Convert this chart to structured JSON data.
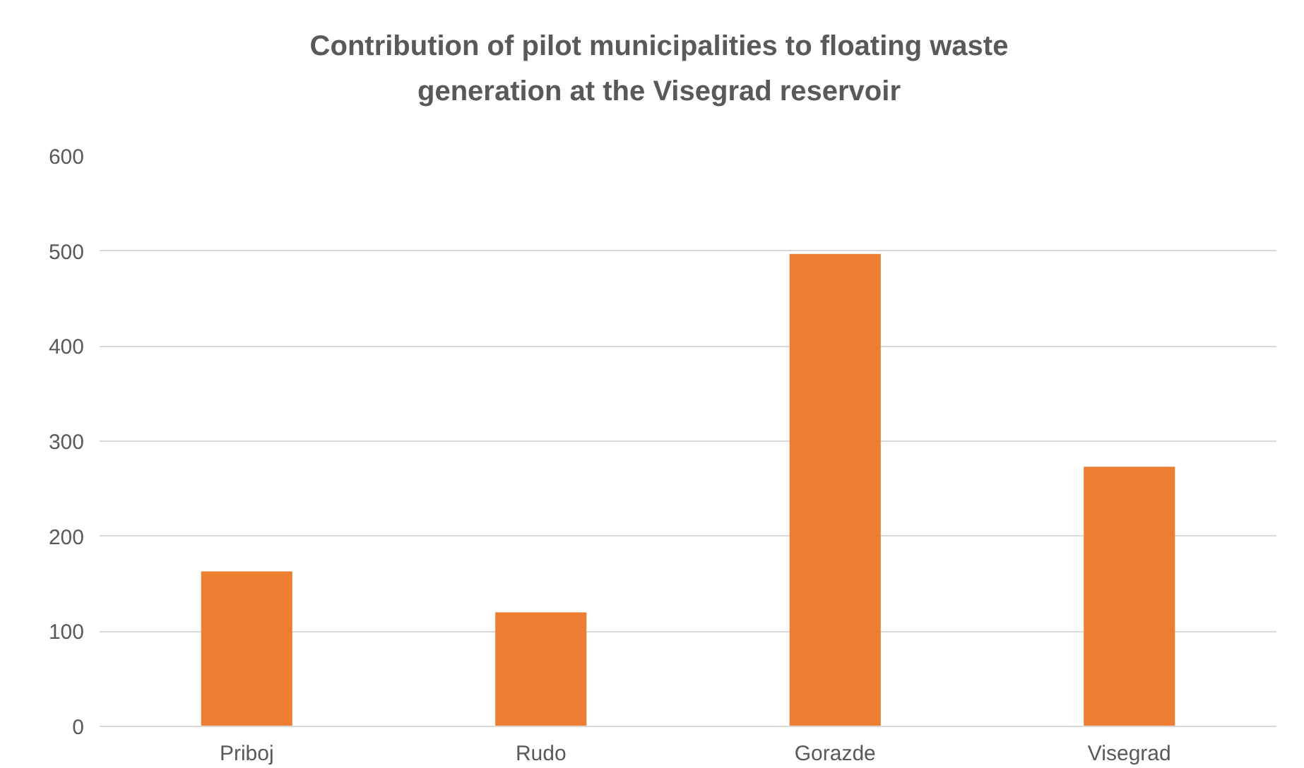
{
  "chart_data": {
    "type": "bar",
    "title": "Contribution of pilot municipalities to floating waste\ngeneration at the Visegrad reservoir",
    "categories": [
      "Priboj",
      "Rudo",
      "Gorazde",
      "Visegrad"
    ],
    "values": [
      163,
      120,
      497,
      273
    ],
    "color": "#ed7d31",
    "ylim": [
      0,
      600
    ],
    "yticks": [
      0,
      100,
      200,
      300,
      400,
      500,
      600
    ],
    "grid": "y"
  }
}
